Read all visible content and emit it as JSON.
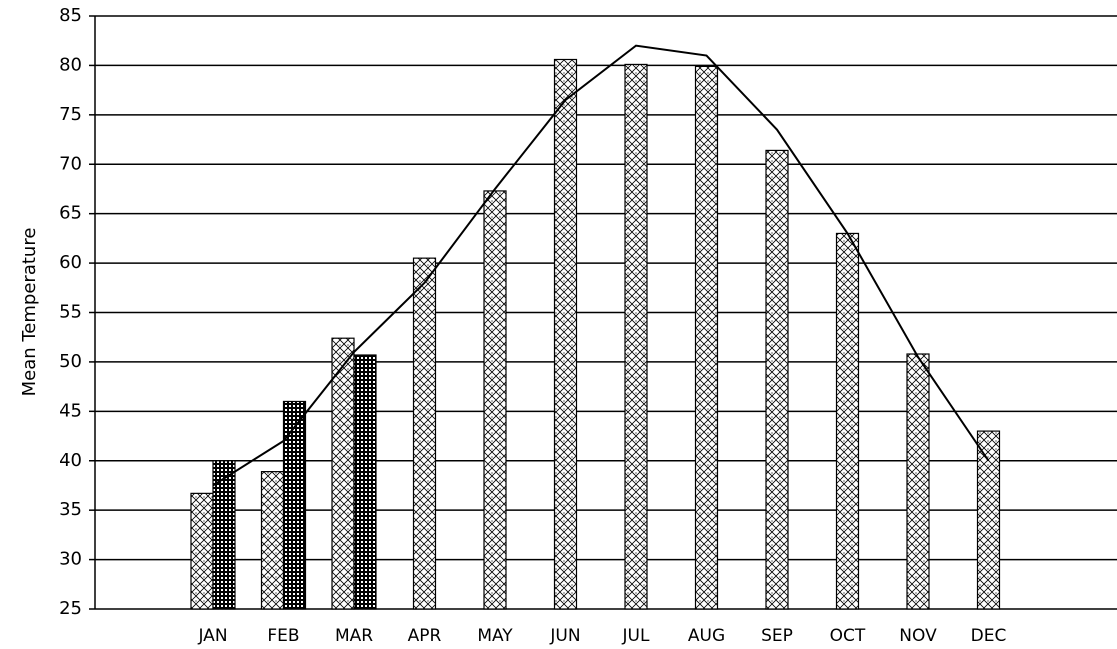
{
  "chart_data": {
    "type": "bar",
    "ylabel": "Mean Temperature",
    "categories": [
      "JAN",
      "FEB",
      "MAR",
      "APR",
      "MAY",
      "JUN",
      "JUL",
      "AUG",
      "SEP",
      "OCT",
      "NOV",
      "DEC"
    ],
    "series": [
      {
        "color": "#000000",
        "values": [
          36.7,
          38.9,
          52.4,
          60.5,
          67.3,
          80.6,
          80.1,
          79.9,
          71.4,
          63,
          50.8,
          43
        ]
      },
      {
        "color": "#000000",
        "values": [
          40,
          46,
          50.7,
          null,
          null,
          null,
          null,
          null,
          null,
          null,
          null,
          null
        ]
      },
      {
        "type": "line",
        "color": "#000000",
        "values": [
          37.5,
          42,
          51,
          58,
          67.5,
          76.5,
          82,
          81,
          73.5,
          63,
          50.5,
          40
        ]
      }
    ],
    "ylim": [
      25,
      85
    ],
    "yticks": [
      25,
      30,
      35,
      40,
      45,
      50,
      55,
      60,
      65,
      70,
      75,
      80,
      85
    ],
    "grid": true
  }
}
